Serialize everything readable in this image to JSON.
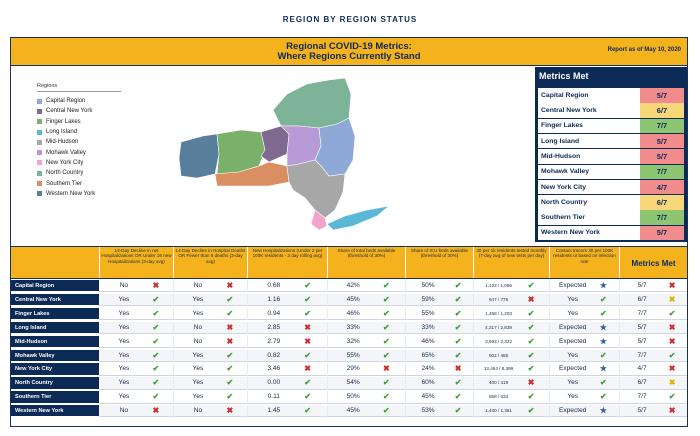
{
  "page": {
    "title": "REGION BY REGION STATUS"
  },
  "banner": {
    "title_line1": "Regional COVID-19 Metrics:",
    "title_line2": "Where Regions Currently Stand",
    "report_date": "Report as of May 10, 2020"
  },
  "legend": {
    "title": "Regions",
    "items": [
      {
        "label": "Capital Region",
        "color": "#8ea9d8"
      },
      {
        "label": "Central New York",
        "color": "#7f6a8f"
      },
      {
        "label": "Finger Lakes",
        "color": "#7ab06a"
      },
      {
        "label": "Long Island",
        "color": "#5ab7d8"
      },
      {
        "label": "Mid-Hudson",
        "color": "#a7a7a7"
      },
      {
        "label": "Mohawk Valley",
        "color": "#b79ad6"
      },
      {
        "label": "New York City",
        "color": "#f2a3c9"
      },
      {
        "label": "North Country",
        "color": "#7db397"
      },
      {
        "label": "Southern Tier",
        "color": "#d98f62"
      },
      {
        "label": "Western New York",
        "color": "#5a7f9c"
      }
    ]
  },
  "metrics_met_panel": {
    "title": "Metrics Met",
    "colors": {
      "red": "#f28b8b",
      "yellow": "#f7d77a",
      "green": "#8dc572"
    },
    "rows": [
      {
        "region": "Capital Region",
        "value": "5/7",
        "status": "red"
      },
      {
        "region": "Central New York",
        "value": "6/7",
        "status": "yellow"
      },
      {
        "region": "Finger Lakes",
        "value": "7/7",
        "status": "green"
      },
      {
        "region": "Long Island",
        "value": "5/7",
        "status": "red"
      },
      {
        "region": "Mid-Hudson",
        "value": "5/7",
        "status": "red"
      },
      {
        "region": "Mohawk Valley",
        "value": "7/7",
        "status": "green"
      },
      {
        "region": "New York City",
        "value": "4/7",
        "status": "red"
      },
      {
        "region": "North Country",
        "value": "6/7",
        "status": "yellow"
      },
      {
        "region": "Southern Tier",
        "value": "7/7",
        "status": "green"
      },
      {
        "region": "Western New York",
        "value": "5/7",
        "status": "red"
      }
    ]
  },
  "table": {
    "headers": [
      "14-Day Decline in net Hospitalizations OR Under 15 new Hospitalizations (3-day avg)",
      "14-Day Decline in Hospital Deaths OR Fewer than 5 deaths (3-day avg)",
      "New Hospitalizations (Under 2 per 100K residents - 3 day rolling avg)",
      "Share of total beds available (threshold of 30%)",
      "Share of ICU beds available (threshold of 30%)",
      "30 per 1k residents tested monthly (7-day avg of new tests per day)",
      "Contact tracers 30 per 100K residents or based on infection rate",
      "Metrics Met"
    ],
    "rows": [
      {
        "region": "Capital Region",
        "c1": "No",
        "m1": "x",
        "c2": "No",
        "m2": "x",
        "c3": "0.68",
        "m3": "check",
        "c4": "42%",
        "m4": "check",
        "c5": "50%",
        "m5": "check",
        "c6": "1,123 / 1,085",
        "m6": "check",
        "c7": "Expected",
        "m7": "star",
        "c8": "5/7",
        "m8": "x"
      },
      {
        "region": "Central New York",
        "c1": "Yes",
        "m1": "check",
        "c2": "Yes",
        "m2": "check",
        "c3": "1.16",
        "m3": "check",
        "c4": "45%",
        "m4": "check",
        "c5": "59%",
        "m5": "check",
        "c6": "647 / 775",
        "m6": "x",
        "c7": "Yes",
        "m7": "check",
        "c8": "6/7",
        "m8": "warn"
      },
      {
        "region": "Finger Lakes",
        "c1": "Yes",
        "m1": "check",
        "c2": "Yes",
        "m2": "check",
        "c3": "0.94",
        "m3": "check",
        "c4": "46%",
        "m4": "check",
        "c5": "55%",
        "m5": "check",
        "c6": "1,458 / 1,203",
        "m6": "check",
        "c7": "Yes",
        "m7": "check",
        "c8": "7/7",
        "m8": "check"
      },
      {
        "region": "Long Island",
        "c1": "Yes",
        "m1": "check",
        "c2": "No",
        "m2": "x",
        "c3": "2.85",
        "m3": "x",
        "c4": "33%",
        "m4": "check",
        "c5": "33%",
        "m5": "check",
        "c6": "4,317 / 2,839",
        "m6": "check",
        "c7": "Expected",
        "m7": "star",
        "c8": "5/7",
        "m8": "x"
      },
      {
        "region": "Mid-Hudson",
        "c1": "Yes",
        "m1": "check",
        "c2": "No",
        "m2": "x",
        "c3": "2.79",
        "m3": "x",
        "c4": "32%",
        "m4": "check",
        "c5": "46%",
        "m5": "check",
        "c6": "3,993 / 2,322",
        "m6": "check",
        "c7": "Expected",
        "m7": "star",
        "c8": "5/7",
        "m8": "x"
      },
      {
        "region": "Mohawk Valley",
        "c1": "Yes",
        "m1": "check",
        "c2": "Yes",
        "m2": "check",
        "c3": "0.82",
        "m3": "check",
        "c4": "55%",
        "m4": "check",
        "c5": "65%",
        "m5": "check",
        "c6": "502 / 485",
        "m6": "check",
        "c7": "Yes",
        "m7": "check",
        "c8": "7/7",
        "m8": "check"
      },
      {
        "region": "New York City",
        "c1": "Yes",
        "m1": "check",
        "c2": "Yes",
        "m2": "check",
        "c3": "3.46",
        "m3": "x",
        "c4": "29%",
        "m4": "x",
        "c5": "24%",
        "m5": "x",
        "c6": "13,464 / 8,399",
        "m6": "check",
        "c7": "Expected",
        "m7": "star",
        "c8": "4/7",
        "m8": "x"
      },
      {
        "region": "North Country",
        "c1": "Yes",
        "m1": "check",
        "c2": "Yes",
        "m2": "check",
        "c3": "0.00",
        "m3": "check",
        "c4": "54%",
        "m4": "check",
        "c5": "60%",
        "m5": "check",
        "c6": "400 / 419",
        "m6": "x",
        "c7": "Yes",
        "m7": "check",
        "c8": "6/7",
        "m8": "warn"
      },
      {
        "region": "Southern Tier",
        "c1": "Yes",
        "m1": "check",
        "c2": "Yes",
        "m2": "check",
        "c3": "0.11",
        "m3": "check",
        "c4": "50%",
        "m4": "check",
        "c5": "45%",
        "m5": "check",
        "c6": "858 / 633",
        "m6": "check",
        "c7": "Yes",
        "m7": "check",
        "c8": "7/7",
        "m8": "check"
      },
      {
        "region": "Western New York",
        "c1": "No",
        "m1": "x",
        "c2": "No",
        "m2": "x",
        "c3": "1.45",
        "m3": "check",
        "c4": "45%",
        "m4": "check",
        "c5": "53%",
        "m5": "check",
        "c6": "1,430 / 1,381",
        "m6": "check",
        "c7": "Expected",
        "m7": "star",
        "c8": "5/7",
        "m8": "x"
      }
    ]
  }
}
